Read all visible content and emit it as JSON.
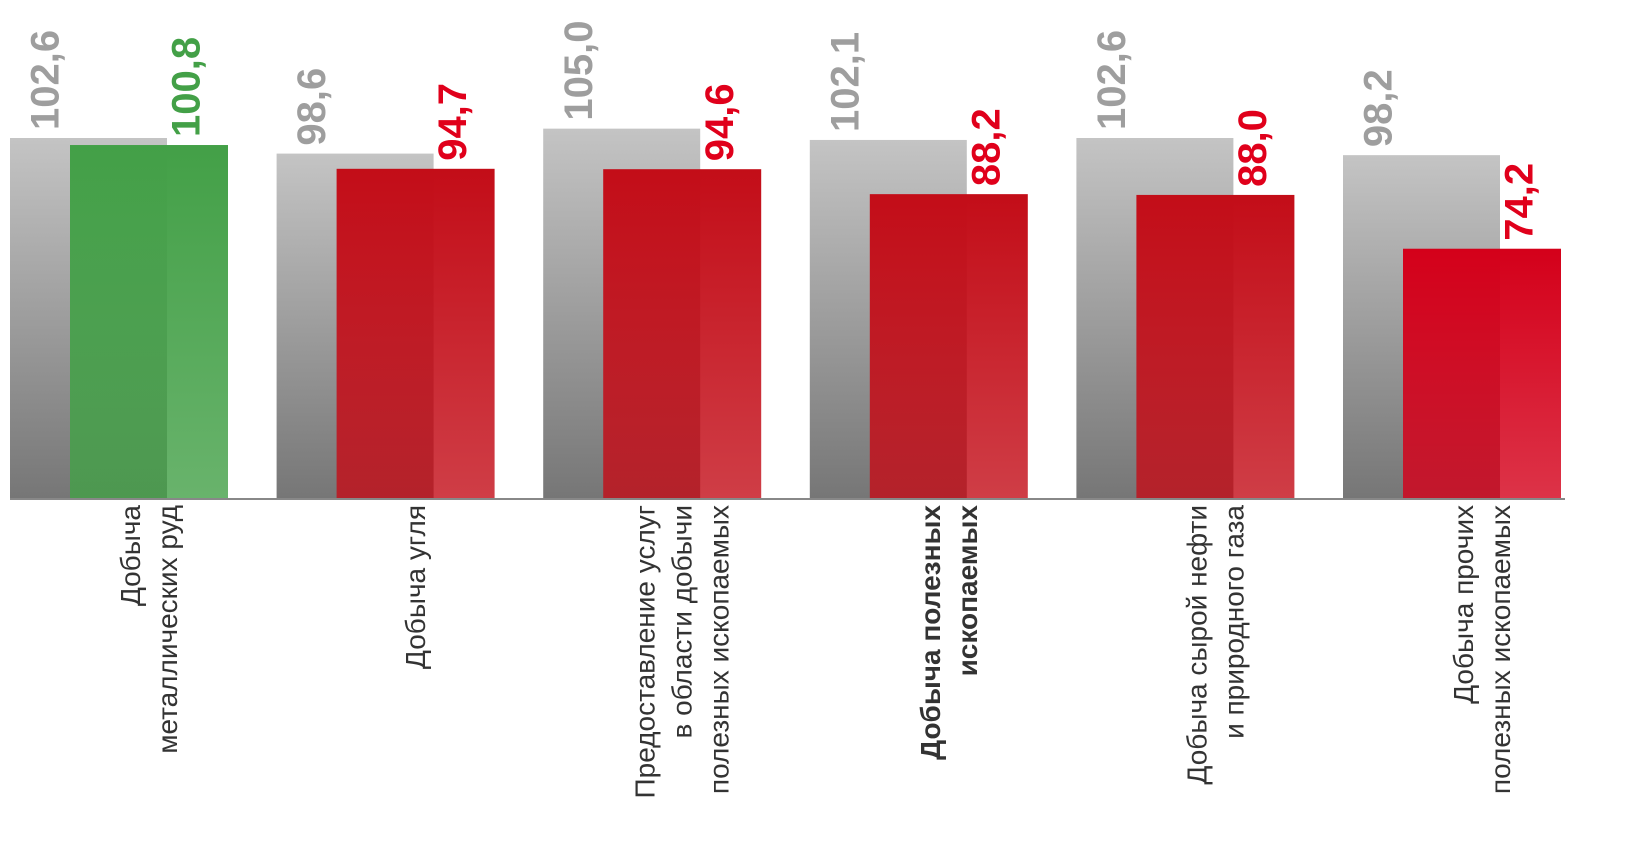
{
  "chart_data": {
    "type": "bar",
    "categories": [
      "Добыча\nметаллических руд",
      "Добыча угля",
      "Предоставление услуг\nв области добычи\nполезных ископаемых",
      "Добыча полезных\nископаемых",
      "Добыча сырой нефти\nи природного газа",
      "Добыча прочих\nполезных ископаемых"
    ],
    "bold_categories": [
      3
    ],
    "series": [
      {
        "color": "#9e9e9e",
        "values": [
          102.6,
          98.6,
          105.0,
          102.1,
          102.6,
          98.2
        ],
        "value_labels": [
          "102,6",
          "98,6",
          "105,0",
          "102,1",
          "102,6",
          "98,2"
        ]
      },
      {
        "color": "#c30d18",
        "colors": [
          "#43a047",
          "#c30d18",
          "#c30d18",
          "#c30d18",
          "#c30d18",
          "#d4001a"
        ],
        "values": [
          100.8,
          94.7,
          94.6,
          88.2,
          88.0,
          74.2
        ],
        "value_labels": [
          "100,8",
          "94,7",
          "94,6",
          "88,2",
          "88,0",
          "74,2"
        ]
      }
    ],
    "ylim": [
      10,
      138
    ]
  }
}
